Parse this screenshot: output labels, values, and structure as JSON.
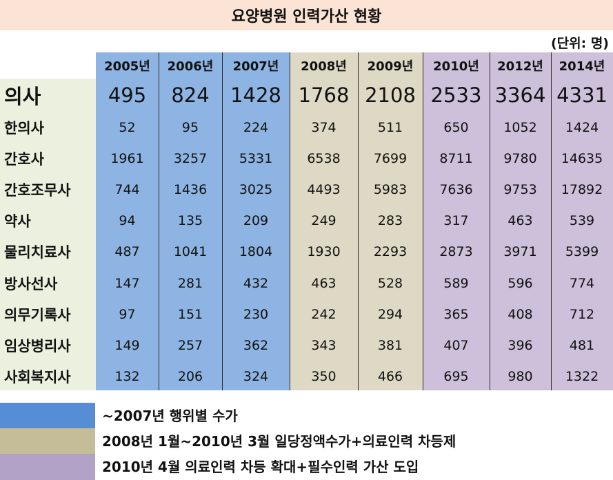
{
  "title": "요양병원 인력가산 현황",
  "unit": "(단위: 명)",
  "colors": {
    "blue": "#8eb4e3",
    "tan": "#ddd9c4",
    "purple": "#ccc0da",
    "label_bg": "#ebf1de",
    "title_bg": "#fbe4d5"
  },
  "table": {
    "years": [
      "2005년",
      "2006년",
      "2007년",
      "2008년",
      "2009년",
      "2010년",
      "2012년",
      "2014년"
    ],
    "rows": [
      {
        "label": "의사",
        "values": [
          "495",
          "824",
          "1428",
          "1768",
          "2108",
          "2533",
          "3364",
          "4331"
        ]
      },
      {
        "label": "한의사",
        "values": [
          "52",
          "95",
          "224",
          "374",
          "511",
          "650",
          "1052",
          "1424"
        ]
      },
      {
        "label": "간호사",
        "values": [
          "1961",
          "3257",
          "5331",
          "6538",
          "7699",
          "8711",
          "9780",
          "14635"
        ]
      },
      {
        "label": "간호조무사",
        "values": [
          "744",
          "1436",
          "3025",
          "4493",
          "5983",
          "7636",
          "9753",
          "17892"
        ]
      },
      {
        "label": "약사",
        "values": [
          "94",
          "135",
          "209",
          "249",
          "283",
          "317",
          "463",
          "539"
        ]
      },
      {
        "label": "물리치료사",
        "values": [
          "487",
          "1041",
          "1804",
          "1930",
          "2293",
          "2873",
          "3971",
          "5399"
        ]
      },
      {
        "label": "방사선사",
        "values": [
          "147",
          "281",
          "432",
          "463",
          "528",
          "589",
          "596",
          "774"
        ]
      },
      {
        "label": "의무기록사",
        "values": [
          "97",
          "151",
          "230",
          "242",
          "294",
          "365",
          "408",
          "712"
        ]
      },
      {
        "label": "임상병리사",
        "values": [
          "149",
          "257",
          "362",
          "343",
          "381",
          "407",
          "396",
          "481"
        ]
      },
      {
        "label": "사회복지사",
        "values": [
          "132",
          "206",
          "324",
          "350",
          "466",
          "695",
          "980",
          "1322"
        ]
      }
    ]
  },
  "legend": [
    {
      "color": "#558ed5",
      "text": "~2007년 행위별 수가"
    },
    {
      "color": "#c4bd97",
      "text": "2008년 1월~2010년 3월 일당정액수가+의료인력 차등제"
    },
    {
      "color": "#b3a2c7",
      "text": "2010년 4월 의료인력 차등 확대+필수인력 가산 도입"
    }
  ]
}
